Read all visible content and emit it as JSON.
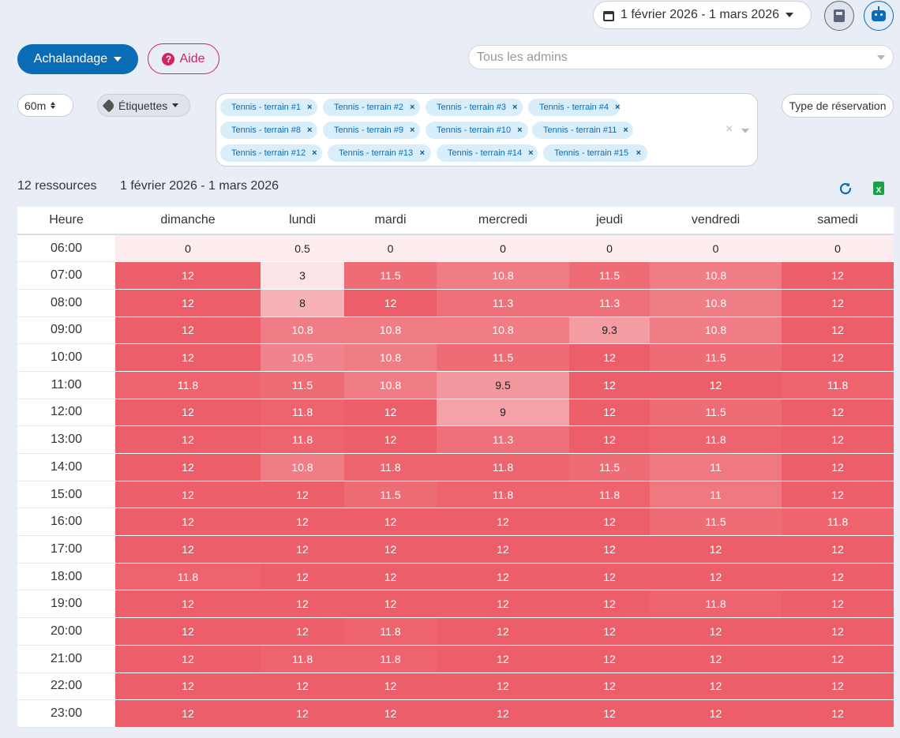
{
  "header": {
    "date_range": "1 février 2026 - 1 mars 2026",
    "achalandage_label": "Achalandage",
    "aide_label": "Aide",
    "admin_placeholder": "Tous les admins",
    "calculator_icon": "calculator-icon",
    "robot_icon": "robot-icon"
  },
  "filters": {
    "interval": "60m",
    "tags_label": "Étiquettes",
    "type_label": "Type de réservation",
    "resources": [
      "Tennis - terrain #1",
      "Tennis - terrain #2",
      "Tennis - terrain #3",
      "Tennis - terrain #4",
      "Tennis - terrain #8",
      "Tennis - terrain #9",
      "Tennis - terrain #10",
      "Tennis - terrain #11",
      "Tennis - terrain #12",
      "Tennis - terrain #13",
      "Tennis - terrain #14",
      "Tennis - terrain #15"
    ],
    "chip_remove": "×",
    "clear_all": "×"
  },
  "summary": {
    "count": "12 ressources",
    "range": "1 février 2026 - 1 mars 2026",
    "excel_label": "X"
  },
  "colors": {
    "accent": "#0a6cb4",
    "danger": "#d0245e",
    "heat_low": "#fdeced",
    "heat_high": "#ec5f6a",
    "chip_bg": "#d9eefb"
  },
  "chart_data": {
    "type": "heatmap",
    "row_header": "Heure",
    "columns": [
      "dimanche",
      "lundi",
      "mardi",
      "mercredi",
      "jeudi",
      "vendredi",
      "samedi"
    ],
    "rows": [
      "06:00",
      "07:00",
      "08:00",
      "09:00",
      "10:00",
      "11:00",
      "12:00",
      "13:00",
      "14:00",
      "15:00",
      "16:00",
      "17:00",
      "18:00",
      "19:00",
      "20:00",
      "21:00",
      "22:00",
      "23:00"
    ],
    "max": 12,
    "values": [
      [
        "0",
        "0.5",
        "0",
        "0",
        "0",
        "0",
        "0"
      ],
      [
        "12",
        "3",
        "11.5",
        "10.8",
        "11.5",
        "10.8",
        "12"
      ],
      [
        "12",
        "8",
        "12",
        "11.3",
        "11.3",
        "10.8",
        "12"
      ],
      [
        "12",
        "10.8",
        "10.8",
        "10.8",
        "9.3",
        "10.8",
        "12"
      ],
      [
        "12",
        "10.5",
        "10.8",
        "11.5",
        "12",
        "11.5",
        "12"
      ],
      [
        "11.8",
        "11.5",
        "10.8",
        "9.5",
        "12",
        "12",
        "11.8"
      ],
      [
        "12",
        "11.8",
        "12",
        "9",
        "12",
        "11.5",
        "12"
      ],
      [
        "12",
        "11.8",
        "12",
        "11.3",
        "12",
        "11.8",
        "12"
      ],
      [
        "12",
        "10.8",
        "11.8",
        "11.8",
        "11.5",
        "11",
        "12"
      ],
      [
        "12",
        "12",
        "11.5",
        "11.8",
        "11.8",
        "11",
        "12"
      ],
      [
        "12",
        "12",
        "12",
        "12",
        "12",
        "11.5",
        "11.8"
      ],
      [
        "12",
        "12",
        "12",
        "12",
        "12",
        "12",
        "12"
      ],
      [
        "11.8",
        "12",
        "12",
        "12",
        "12",
        "12",
        "12"
      ],
      [
        "12",
        "12",
        "12",
        "12",
        "12",
        "11.8",
        "12"
      ],
      [
        "12",
        "12",
        "11.8",
        "12",
        "12",
        "12",
        "12"
      ],
      [
        "12",
        "11.8",
        "11.8",
        "12",
        "12",
        "12",
        "12"
      ],
      [
        "12",
        "12",
        "12",
        "12",
        "12",
        "12",
        "12"
      ],
      [
        "12",
        "12",
        "12",
        "12",
        "12",
        "12",
        "12"
      ]
    ]
  }
}
